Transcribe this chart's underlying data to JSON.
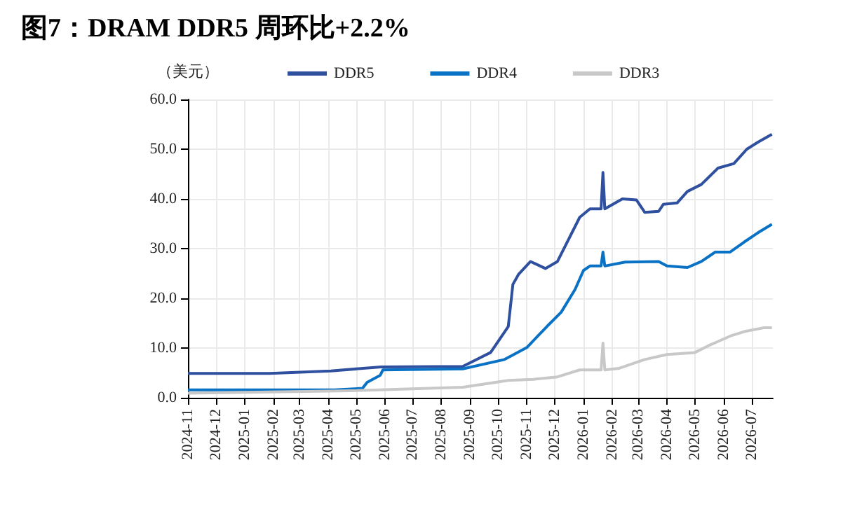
{
  "chart_data": {
    "type": "line",
    "title": "图7：DRAM DDR5 周环比+2.2%",
    "ylabel": "（美元）",
    "xlim": [
      "2024-11-01",
      "2026-07-24"
    ],
    "xticks": [
      "2024-11",
      "2024-12",
      "2025-01",
      "2025-02",
      "2025-03",
      "2025-04",
      "2025-05",
      "2025-06",
      "2025-07",
      "2025-08",
      "2025-09",
      "2025-10",
      "2025-11",
      "2025-12",
      "2026-01",
      "2026-02",
      "2026-03",
      "2026-04",
      "2026-05",
      "2026-06",
      "2026-07"
    ],
    "ylim": [
      0,
      60
    ],
    "yticks": [
      {
        "value": 0,
        "label": "0.0"
      },
      {
        "value": 10,
        "label": "10.0"
      },
      {
        "value": 20,
        "label": "20.0"
      },
      {
        "value": 30,
        "label": "30.0"
      },
      {
        "value": 40,
        "label": "40.0"
      },
      {
        "value": 50,
        "label": "50.0"
      },
      {
        "value": 60,
        "label": "60.0"
      }
    ],
    "grid": true,
    "legend": "top",
    "marker": "none",
    "line_style": "solid",
    "series": [
      {
        "name": "DDR5",
        "color": "#2f4f9f",
        "x": [
          "2024-11-01",
          "2025-01-28",
          "2025-04-04",
          "2025-05-28",
          "2025-08-24",
          "2025-09-23",
          "2025-10-12",
          "2025-10-17",
          "2025-10-23",
          "2025-11-05",
          "2025-11-21",
          "2025-12-04",
          "2025-12-28",
          "2026-01-08",
          "2026-01-20",
          "2026-01-22",
          "2026-01-24",
          "2026-02-12",
          "2026-02-27",
          "2026-03-08",
          "2026-03-23",
          "2026-03-28",
          "2026-04-12",
          "2026-04-23",
          "2026-05-08",
          "2026-05-26",
          "2026-06-12",
          "2026-06-26",
          "2026-07-08",
          "2026-07-23"
        ],
        "values": [
          4.9,
          4.9,
          5.4,
          6.2,
          6.3,
          9.1,
          14.3,
          22.8,
          24.8,
          27.4,
          26,
          27.4,
          36.3,
          38,
          38,
          45.3,
          38,
          40,
          39.8,
          37.3,
          37.5,
          38.9,
          39.2,
          41.5,
          42.9,
          46.2,
          47.1,
          50,
          51.4,
          53
        ]
      },
      {
        "name": "DDR4",
        "color": "#0a72c4",
        "x": [
          "2024-11-01",
          "2025-04-08",
          "2025-05-08",
          "2025-05-13",
          "2025-05-27",
          "2025-05-30",
          "2025-08-24",
          "2025-10-08",
          "2025-11-01",
          "2025-11-23",
          "2025-12-08",
          "2025-12-23",
          "2026-01-01",
          "2026-01-08",
          "2026-01-20",
          "2026-01-22",
          "2026-01-24",
          "2026-02-15",
          "2026-03-23",
          "2026-04-01",
          "2026-04-23",
          "2026-05-08",
          "2026-05-23",
          "2026-06-08",
          "2026-06-23",
          "2026-07-08",
          "2026-07-23"
        ],
        "values": [
          1.6,
          1.6,
          1.9,
          3.1,
          4.5,
          5.6,
          5.8,
          7.7,
          10.1,
          14.4,
          17.2,
          21.8,
          25.6,
          26.5,
          26.5,
          29.3,
          26.5,
          27.3,
          27.4,
          26.5,
          26.2,
          27.4,
          29.3,
          29.3,
          31.3,
          33.2,
          34.9
        ]
      },
      {
        "name": "DDR3",
        "color": "#c8c8c8",
        "x": [
          "2024-11-01",
          "2025-04-25",
          "2025-08-24",
          "2025-10-12",
          "2025-11-08",
          "2025-12-04",
          "2025-12-28",
          "2026-01-20",
          "2026-01-22",
          "2026-01-24",
          "2026-02-08",
          "2026-03-08",
          "2026-04-01",
          "2026-05-01",
          "2026-05-16",
          "2026-06-08",
          "2026-06-23",
          "2026-07-15",
          "2026-07-23"
        ],
        "values": [
          0.9,
          1.4,
          2.1,
          3.5,
          3.7,
          4.2,
          5.6,
          5.6,
          11,
          5.6,
          5.9,
          7.7,
          8.7,
          9.1,
          10.5,
          12.4,
          13.3,
          14.1,
          14.1
        ]
      }
    ]
  }
}
